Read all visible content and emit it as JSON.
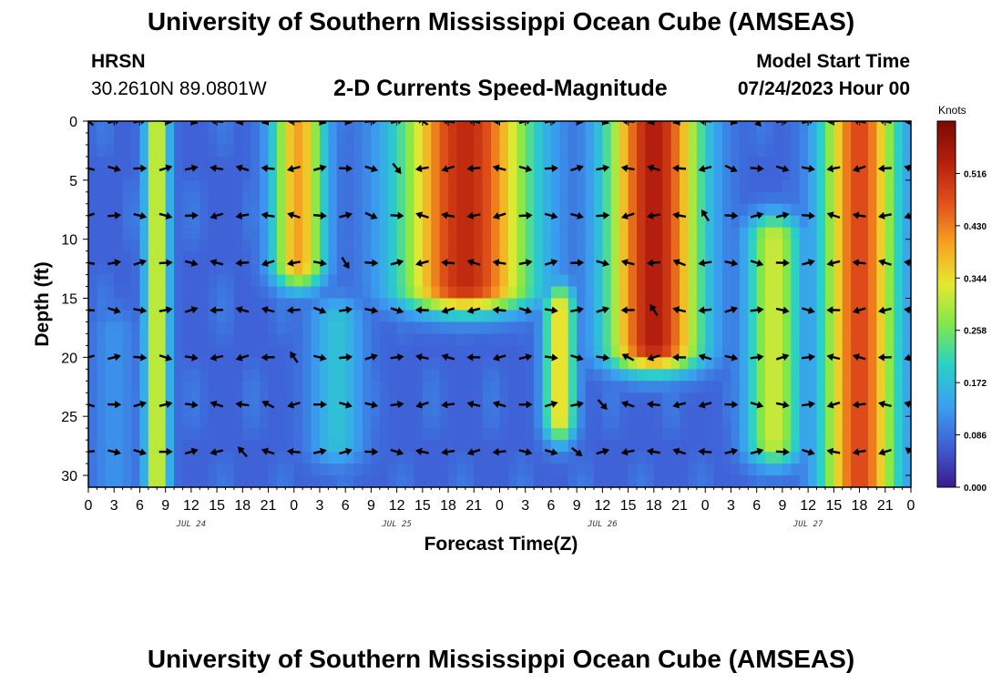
{
  "header": {
    "title": "University of Southern Mississippi Ocean Cube (AMSEAS)",
    "station": "HRSN",
    "coords": "30.2610N  89.0801W",
    "plot_title": "2-D Currents Speed-Magnitude",
    "model_start_label": "Model Start Time",
    "model_start_value": "07/24/2023 Hour 00"
  },
  "footer": {
    "title": "University of Southern Mississippi Ocean Cube (AMSEAS)"
  },
  "colors": {
    "scale": [
      "#3a1a8c",
      "#3f5fd6",
      "#3aa0f0",
      "#2ad0c8",
      "#7ee84a",
      "#e6e830",
      "#f7a020",
      "#e0501a",
      "#b51e0c",
      "#7a0a04"
    ]
  },
  "chart_data": {
    "type": "heatmap",
    "title": "2-D Currents Speed-Magnitude",
    "xlabel": "Forecast Time(Z)",
    "ylabel": "Depth (ft)",
    "x_ticks": [
      "0",
      "3",
      "6",
      "9",
      "12",
      "15",
      "18",
      "21",
      "0",
      "3",
      "6",
      "9",
      "12",
      "15",
      "18",
      "21",
      "0",
      "3",
      "6",
      "9",
      "12",
      "15",
      "18",
      "21",
      "0",
      "3",
      "6",
      "9",
      "12",
      "15",
      "18",
      "21",
      "0"
    ],
    "x_range_hours": [
      0,
      96
    ],
    "day_labels": [
      {
        "label": "JUL 24",
        "hour": 12
      },
      {
        "label": "JUL 25",
        "hour": 36
      },
      {
        "label": "JUL 26",
        "hour": 60
      },
      {
        "label": "JUL 27",
        "hour": 84
      }
    ],
    "y_ticks": [
      "0",
      "5",
      "10",
      "15",
      "20",
      "25",
      "30"
    ],
    "ylim": [
      0,
      31
    ],
    "colorbar": {
      "unit": "Knots",
      "range": [
        0,
        0.602
      ],
      "ticks": [
        "0.000",
        "0.086",
        "0.172",
        "0.258",
        "0.344",
        "0.430",
        "0.516"
      ]
    },
    "arrow_depths_ft": [
      0,
      4,
      8,
      12,
      16,
      20,
      24,
      28
    ],
    "arrow_hour_step": 3,
    "speed_features_knots": [
      {
        "t_center": 8,
        "t_halfwidth": 1.3,
        "depth_from": 0,
        "depth_to": 31,
        "speed": 0.34
      },
      {
        "t_center": 3,
        "t_halfwidth": 2.5,
        "depth_from": 18,
        "depth_to": 31,
        "speed": 0.12
      },
      {
        "t_center": 24.5,
        "t_halfwidth": 2.8,
        "depth_from": 0,
        "depth_to": 12,
        "speed": 0.4
      },
      {
        "t_center": 29,
        "t_halfwidth": 3,
        "depth_from": 17,
        "depth_to": 27,
        "speed": 0.18
      },
      {
        "t_center": 44,
        "t_halfwidth": 7,
        "depth_from": 0,
        "depth_to": 14,
        "speed": 0.52
      },
      {
        "t_center": 55,
        "t_halfwidth": 1.7,
        "depth_from": 16,
        "depth_to": 25,
        "speed": 0.36
      },
      {
        "t_center": 66,
        "t_halfwidth": 5,
        "depth_from": 0,
        "depth_to": 19,
        "speed": 0.54
      },
      {
        "t_center": 80,
        "t_halfwidth": 3,
        "depth_from": 10,
        "depth_to": 27,
        "speed": 0.32
      },
      {
        "t_center": 90,
        "t_halfwidth": 4,
        "depth_from": 0,
        "depth_to": 31,
        "speed": 0.48
      }
    ],
    "background_speed_knots": 0.07
  }
}
